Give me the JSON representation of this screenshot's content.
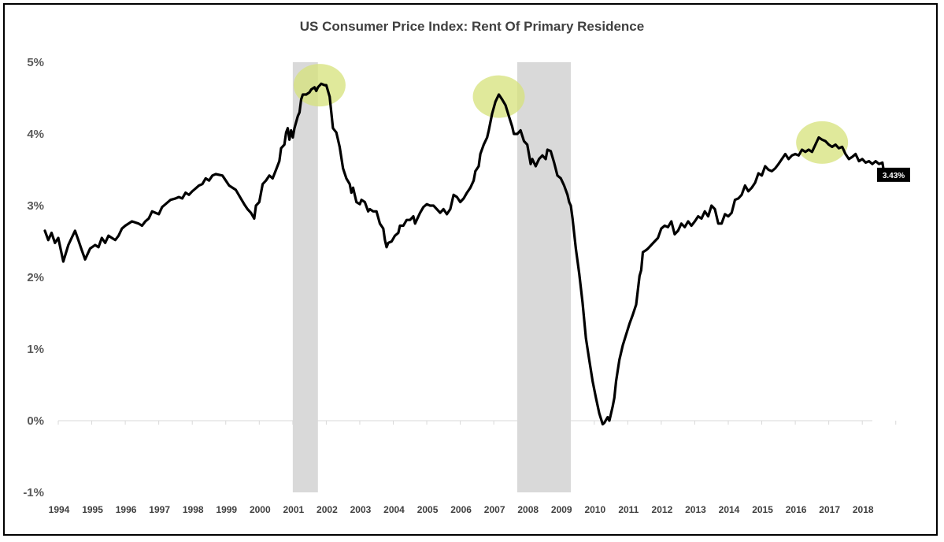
{
  "chart_data": {
    "type": "line",
    "title": "US Consumer Price Index: Rent Of Primary Residence",
    "xlabel": "",
    "ylabel": "",
    "x_tick_labels": [
      "1994",
      "1995",
      "1996",
      "1997",
      "1998",
      "1999",
      "2000",
      "2001",
      "2002",
      "2003",
      "2004",
      "2005",
      "2006",
      "2007",
      "2008",
      "2009",
      "2010",
      "2011",
      "2012",
      "2013",
      "2014",
      "2015",
      "2016",
      "2017",
      "2018"
    ],
    "y_tick_labels": [
      "5%",
      "4%",
      "3%",
      "2%",
      "1%",
      "0%",
      "-1%"
    ],
    "y_tick_values": [
      5,
      4,
      3,
      2,
      1,
      0,
      -1
    ],
    "xlim": [
      1994.0,
      2018.5
    ],
    "ylim": [
      -1,
      5
    ],
    "grid": false,
    "legend": "none",
    "series": [
      {
        "values": [
          [
            1994.0,
            2.65
          ],
          [
            1994.1,
            2.52
          ],
          [
            1994.2,
            2.62
          ],
          [
            1994.3,
            2.48
          ],
          [
            1994.4,
            2.55
          ],
          [
            1994.55,
            2.22
          ],
          [
            1994.7,
            2.45
          ],
          [
            1994.8,
            2.55
          ],
          [
            1994.9,
            2.65
          ],
          [
            1995.0,
            2.52
          ],
          [
            1995.1,
            2.38
          ],
          [
            1995.2,
            2.25
          ],
          [
            1995.35,
            2.4
          ],
          [
            1995.5,
            2.45
          ],
          [
            1995.6,
            2.42
          ],
          [
            1995.7,
            2.55
          ],
          [
            1995.8,
            2.48
          ],
          [
            1995.9,
            2.58
          ],
          [
            1996.0,
            2.55
          ],
          [
            1996.1,
            2.52
          ],
          [
            1996.2,
            2.58
          ],
          [
            1996.3,
            2.68
          ],
          [
            1996.4,
            2.72
          ],
          [
            1996.6,
            2.78
          ],
          [
            1996.8,
            2.75
          ],
          [
            1996.9,
            2.72
          ],
          [
            1997.0,
            2.78
          ],
          [
            1997.1,
            2.82
          ],
          [
            1997.2,
            2.92
          ],
          [
            1997.3,
            2.9
          ],
          [
            1997.4,
            2.88
          ],
          [
            1997.5,
            2.98
          ],
          [
            1997.6,
            3.02
          ],
          [
            1997.75,
            3.08
          ],
          [
            1997.9,
            3.1
          ],
          [
            1998.0,
            3.12
          ],
          [
            1998.1,
            3.1
          ],
          [
            1998.2,
            3.18
          ],
          [
            1998.3,
            3.15
          ],
          [
            1998.4,
            3.2
          ],
          [
            1998.5,
            3.24
          ],
          [
            1998.6,
            3.28
          ],
          [
            1998.7,
            3.3
          ],
          [
            1998.8,
            3.38
          ],
          [
            1998.9,
            3.35
          ],
          [
            1999.0,
            3.42
          ],
          [
            1999.1,
            3.44
          ],
          [
            1999.3,
            3.42
          ],
          [
            1999.4,
            3.35
          ],
          [
            1999.5,
            3.28
          ],
          [
            1999.7,
            3.22
          ],
          [
            1999.85,
            3.1
          ],
          [
            1999.95,
            3.02
          ],
          [
            2000.05,
            2.95
          ],
          [
            2000.15,
            2.9
          ],
          [
            2000.25,
            2.82
          ],
          [
            2000.3,
            3.0
          ],
          [
            2000.4,
            3.05
          ],
          [
            2000.5,
            3.3
          ],
          [
            2000.6,
            3.35
          ],
          [
            2000.7,
            3.42
          ],
          [
            2000.8,
            3.38
          ],
          [
            2000.9,
            3.5
          ],
          [
            2001.0,
            3.62
          ],
          [
            2001.05,
            3.8
          ],
          [
            2001.15,
            3.85
          ],
          [
            2001.2,
            4.02
          ],
          [
            2001.25,
            4.08
          ],
          [
            2001.3,
            3.92
          ],
          [
            2001.35,
            4.05
          ],
          [
            2001.4,
            3.95
          ],
          [
            2001.45,
            4.08
          ],
          [
            2001.55,
            4.25
          ],
          [
            2001.6,
            4.3
          ],
          [
            2001.65,
            4.48
          ],
          [
            2001.7,
            4.55
          ],
          [
            2001.8,
            4.55
          ],
          [
            2001.9,
            4.58
          ],
          [
            2001.95,
            4.62
          ],
          [
            2002.05,
            4.65
          ],
          [
            2002.1,
            4.6
          ],
          [
            2002.15,
            4.65
          ],
          [
            2002.25,
            4.7
          ],
          [
            2002.35,
            4.68
          ],
          [
            2002.4,
            4.68
          ],
          [
            2002.5,
            4.52
          ],
          [
            2002.55,
            4.3
          ],
          [
            2002.6,
            4.08
          ],
          [
            2002.7,
            4.02
          ],
          [
            2002.8,
            3.82
          ],
          [
            2002.9,
            3.52
          ],
          [
            2003.0,
            3.38
          ],
          [
            2003.1,
            3.3
          ],
          [
            2003.15,
            3.18
          ],
          [
            2003.2,
            3.25
          ],
          [
            2003.3,
            3.05
          ],
          [
            2003.4,
            3.02
          ],
          [
            2003.45,
            3.08
          ],
          [
            2003.55,
            3.05
          ],
          [
            2003.65,
            2.92
          ],
          [
            2003.7,
            2.95
          ],
          [
            2003.8,
            2.92
          ],
          [
            2003.9,
            2.92
          ],
          [
            2004.0,
            2.75
          ],
          [
            2004.1,
            2.68
          ],
          [
            2004.15,
            2.52
          ],
          [
            2004.2,
            2.42
          ],
          [
            2004.25,
            2.48
          ],
          [
            2004.35,
            2.5
          ],
          [
            2004.45,
            2.58
          ],
          [
            2004.55,
            2.62
          ],
          [
            2004.6,
            2.72
          ],
          [
            2004.7,
            2.72
          ],
          [
            2004.8,
            2.8
          ],
          [
            2004.9,
            2.8
          ],
          [
            2005.0,
            2.85
          ],
          [
            2005.05,
            2.75
          ],
          [
            2005.1,
            2.8
          ],
          [
            2005.2,
            2.9
          ],
          [
            2005.3,
            2.98
          ],
          [
            2005.4,
            3.02
          ],
          [
            2005.5,
            3.0
          ],
          [
            2005.6,
            3.0
          ],
          [
            2005.7,
            2.95
          ],
          [
            2005.8,
            2.9
          ],
          [
            2005.9,
            2.95
          ],
          [
            2006.0,
            2.88
          ],
          [
            2006.1,
            2.95
          ],
          [
            2006.15,
            3.05
          ],
          [
            2006.2,
            3.15
          ],
          [
            2006.3,
            3.12
          ],
          [
            2006.4,
            3.05
          ],
          [
            2006.5,
            3.1
          ],
          [
            2006.6,
            3.18
          ],
          [
            2006.7,
            3.25
          ],
          [
            2006.8,
            3.35
          ],
          [
            2006.85,
            3.48
          ],
          [
            2006.95,
            3.55
          ],
          [
            2007.0,
            3.72
          ],
          [
            2007.1,
            3.85
          ],
          [
            2007.2,
            3.95
          ],
          [
            2007.25,
            4.05
          ],
          [
            2007.35,
            4.28
          ],
          [
            2007.45,
            4.45
          ],
          [
            2007.55,
            4.55
          ],
          [
            2007.65,
            4.48
          ],
          [
            2007.75,
            4.4
          ],
          [
            2007.85,
            4.25
          ],
          [
            2007.95,
            4.1
          ],
          [
            2008.0,
            4.0
          ],
          [
            2008.1,
            4.0
          ],
          [
            2008.2,
            4.05
          ],
          [
            2008.3,
            3.9
          ],
          [
            2008.4,
            3.85
          ],
          [
            2008.45,
            3.72
          ],
          [
            2008.5,
            3.58
          ],
          [
            2008.55,
            3.65
          ],
          [
            2008.65,
            3.55
          ],
          [
            2008.75,
            3.65
          ],
          [
            2008.85,
            3.7
          ],
          [
            2008.95,
            3.65
          ],
          [
            2009.0,
            3.78
          ],
          [
            2009.1,
            3.76
          ],
          [
            2009.2,
            3.6
          ],
          [
            2009.3,
            3.42
          ],
          [
            2009.4,
            3.38
          ],
          [
            2009.5,
            3.28
          ],
          [
            2009.6,
            3.15
          ],
          [
            2009.65,
            3.05
          ],
          [
            2009.7,
            3.0
          ],
          [
            2009.75,
            2.82
          ],
          [
            2009.85,
            2.4
          ],
          [
            2009.95,
            2.05
          ],
          [
            2010.05,
            1.65
          ],
          [
            2010.15,
            1.15
          ],
          [
            2010.25,
            0.85
          ],
          [
            2010.35,
            0.55
          ],
          [
            2010.45,
            0.32
          ],
          [
            2010.55,
            0.1
          ],
          [
            2010.65,
            -0.05
          ],
          [
            2010.7,
            -0.03
          ],
          [
            2010.8,
            0.05
          ],
          [
            2010.85,
            0.0
          ],
          [
            2010.95,
            0.2
          ],
          [
            2011.0,
            0.32
          ],
          [
            2011.05,
            0.55
          ],
          [
            2011.15,
            0.85
          ],
          [
            2011.25,
            1.05
          ],
          [
            2011.35,
            1.2
          ],
          [
            2011.45,
            1.35
          ],
          [
            2011.55,
            1.48
          ],
          [
            2011.65,
            1.62
          ],
          [
            2011.75,
            2.02
          ],
          [
            2011.8,
            2.1
          ],
          [
            2011.85,
            2.35
          ],
          [
            2011.95,
            2.38
          ],
          [
            2012.0,
            2.4
          ],
          [
            2012.1,
            2.45
          ],
          [
            2012.2,
            2.5
          ],
          [
            2012.3,
            2.55
          ],
          [
            2012.4,
            2.68
          ],
          [
            2012.5,
            2.72
          ],
          [
            2012.6,
            2.7
          ],
          [
            2012.7,
            2.78
          ],
          [
            2012.8,
            2.6
          ],
          [
            2012.9,
            2.65
          ],
          [
            2013.0,
            2.75
          ],
          [
            2013.1,
            2.7
          ],
          [
            2013.2,
            2.78
          ],
          [
            2013.3,
            2.72
          ],
          [
            2013.4,
            2.78
          ],
          [
            2013.5,
            2.85
          ],
          [
            2013.6,
            2.82
          ],
          [
            2013.7,
            2.92
          ],
          [
            2013.8,
            2.85
          ],
          [
            2013.9,
            3.0
          ],
          [
            2014.0,
            2.95
          ],
          [
            2014.1,
            2.75
          ],
          [
            2014.2,
            2.75
          ],
          [
            2014.3,
            2.88
          ],
          [
            2014.4,
            2.85
          ],
          [
            2014.5,
            2.9
          ],
          [
            2014.6,
            3.08
          ],
          [
            2014.7,
            3.1
          ],
          [
            2014.8,
            3.15
          ],
          [
            2014.9,
            3.28
          ],
          [
            2015.0,
            3.2
          ],
          [
            2015.1,
            3.25
          ],
          [
            2015.2,
            3.32
          ],
          [
            2015.3,
            3.45
          ],
          [
            2015.4,
            3.42
          ],
          [
            2015.5,
            3.55
          ],
          [
            2015.6,
            3.5
          ],
          [
            2015.7,
            3.48
          ],
          [
            2015.8,
            3.52
          ],
          [
            2015.9,
            3.58
          ],
          [
            2016.0,
            3.65
          ],
          [
            2016.1,
            3.72
          ],
          [
            2016.2,
            3.65
          ],
          [
            2016.3,
            3.7
          ],
          [
            2016.4,
            3.72
          ],
          [
            2016.5,
            3.7
          ],
          [
            2016.6,
            3.78
          ],
          [
            2016.7,
            3.75
          ],
          [
            2016.8,
            3.78
          ],
          [
            2016.9,
            3.75
          ],
          [
            2017.0,
            3.85
          ],
          [
            2017.1,
            3.95
          ],
          [
            2017.2,
            3.92
          ],
          [
            2017.3,
            3.9
          ],
          [
            2017.4,
            3.85
          ],
          [
            2017.5,
            3.82
          ],
          [
            2017.6,
            3.85
          ],
          [
            2017.7,
            3.8
          ],
          [
            2017.8,
            3.82
          ],
          [
            2017.9,
            3.72
          ],
          [
            2018.0,
            3.65
          ],
          [
            2018.1,
            3.68
          ],
          [
            2018.2,
            3.72
          ],
          [
            2018.3,
            3.62
          ],
          [
            2018.4,
            3.65
          ],
          [
            2018.5,
            3.6
          ],
          [
            2018.6,
            3.62
          ],
          [
            2018.7,
            3.58
          ],
          [
            2018.8,
            3.62
          ],
          [
            2018.9,
            3.58
          ],
          [
            2019.0,
            3.6
          ],
          [
            2019.05,
            3.45
          ],
          [
            2019.12,
            3.43
          ]
        ]
      }
    ],
    "shaded_periods": [
      {
        "start": 2001.4,
        "end": 2002.15
      },
      {
        "start": 2008.1,
        "end": 2009.7
      }
    ],
    "highlight_ellipses": [
      {
        "x": 2002.2,
        "y": 4.68
      },
      {
        "x": 2007.55,
        "y": 4.52
      },
      {
        "x": 2017.2,
        "y": 3.88
      }
    ],
    "last_value_label": "3.43%",
    "colors": {
      "line": "#000000",
      "shading": "#d9d9d9",
      "highlight": "#d6e17a",
      "label_bg": "#000000",
      "label_text": "#ffffff"
    }
  }
}
